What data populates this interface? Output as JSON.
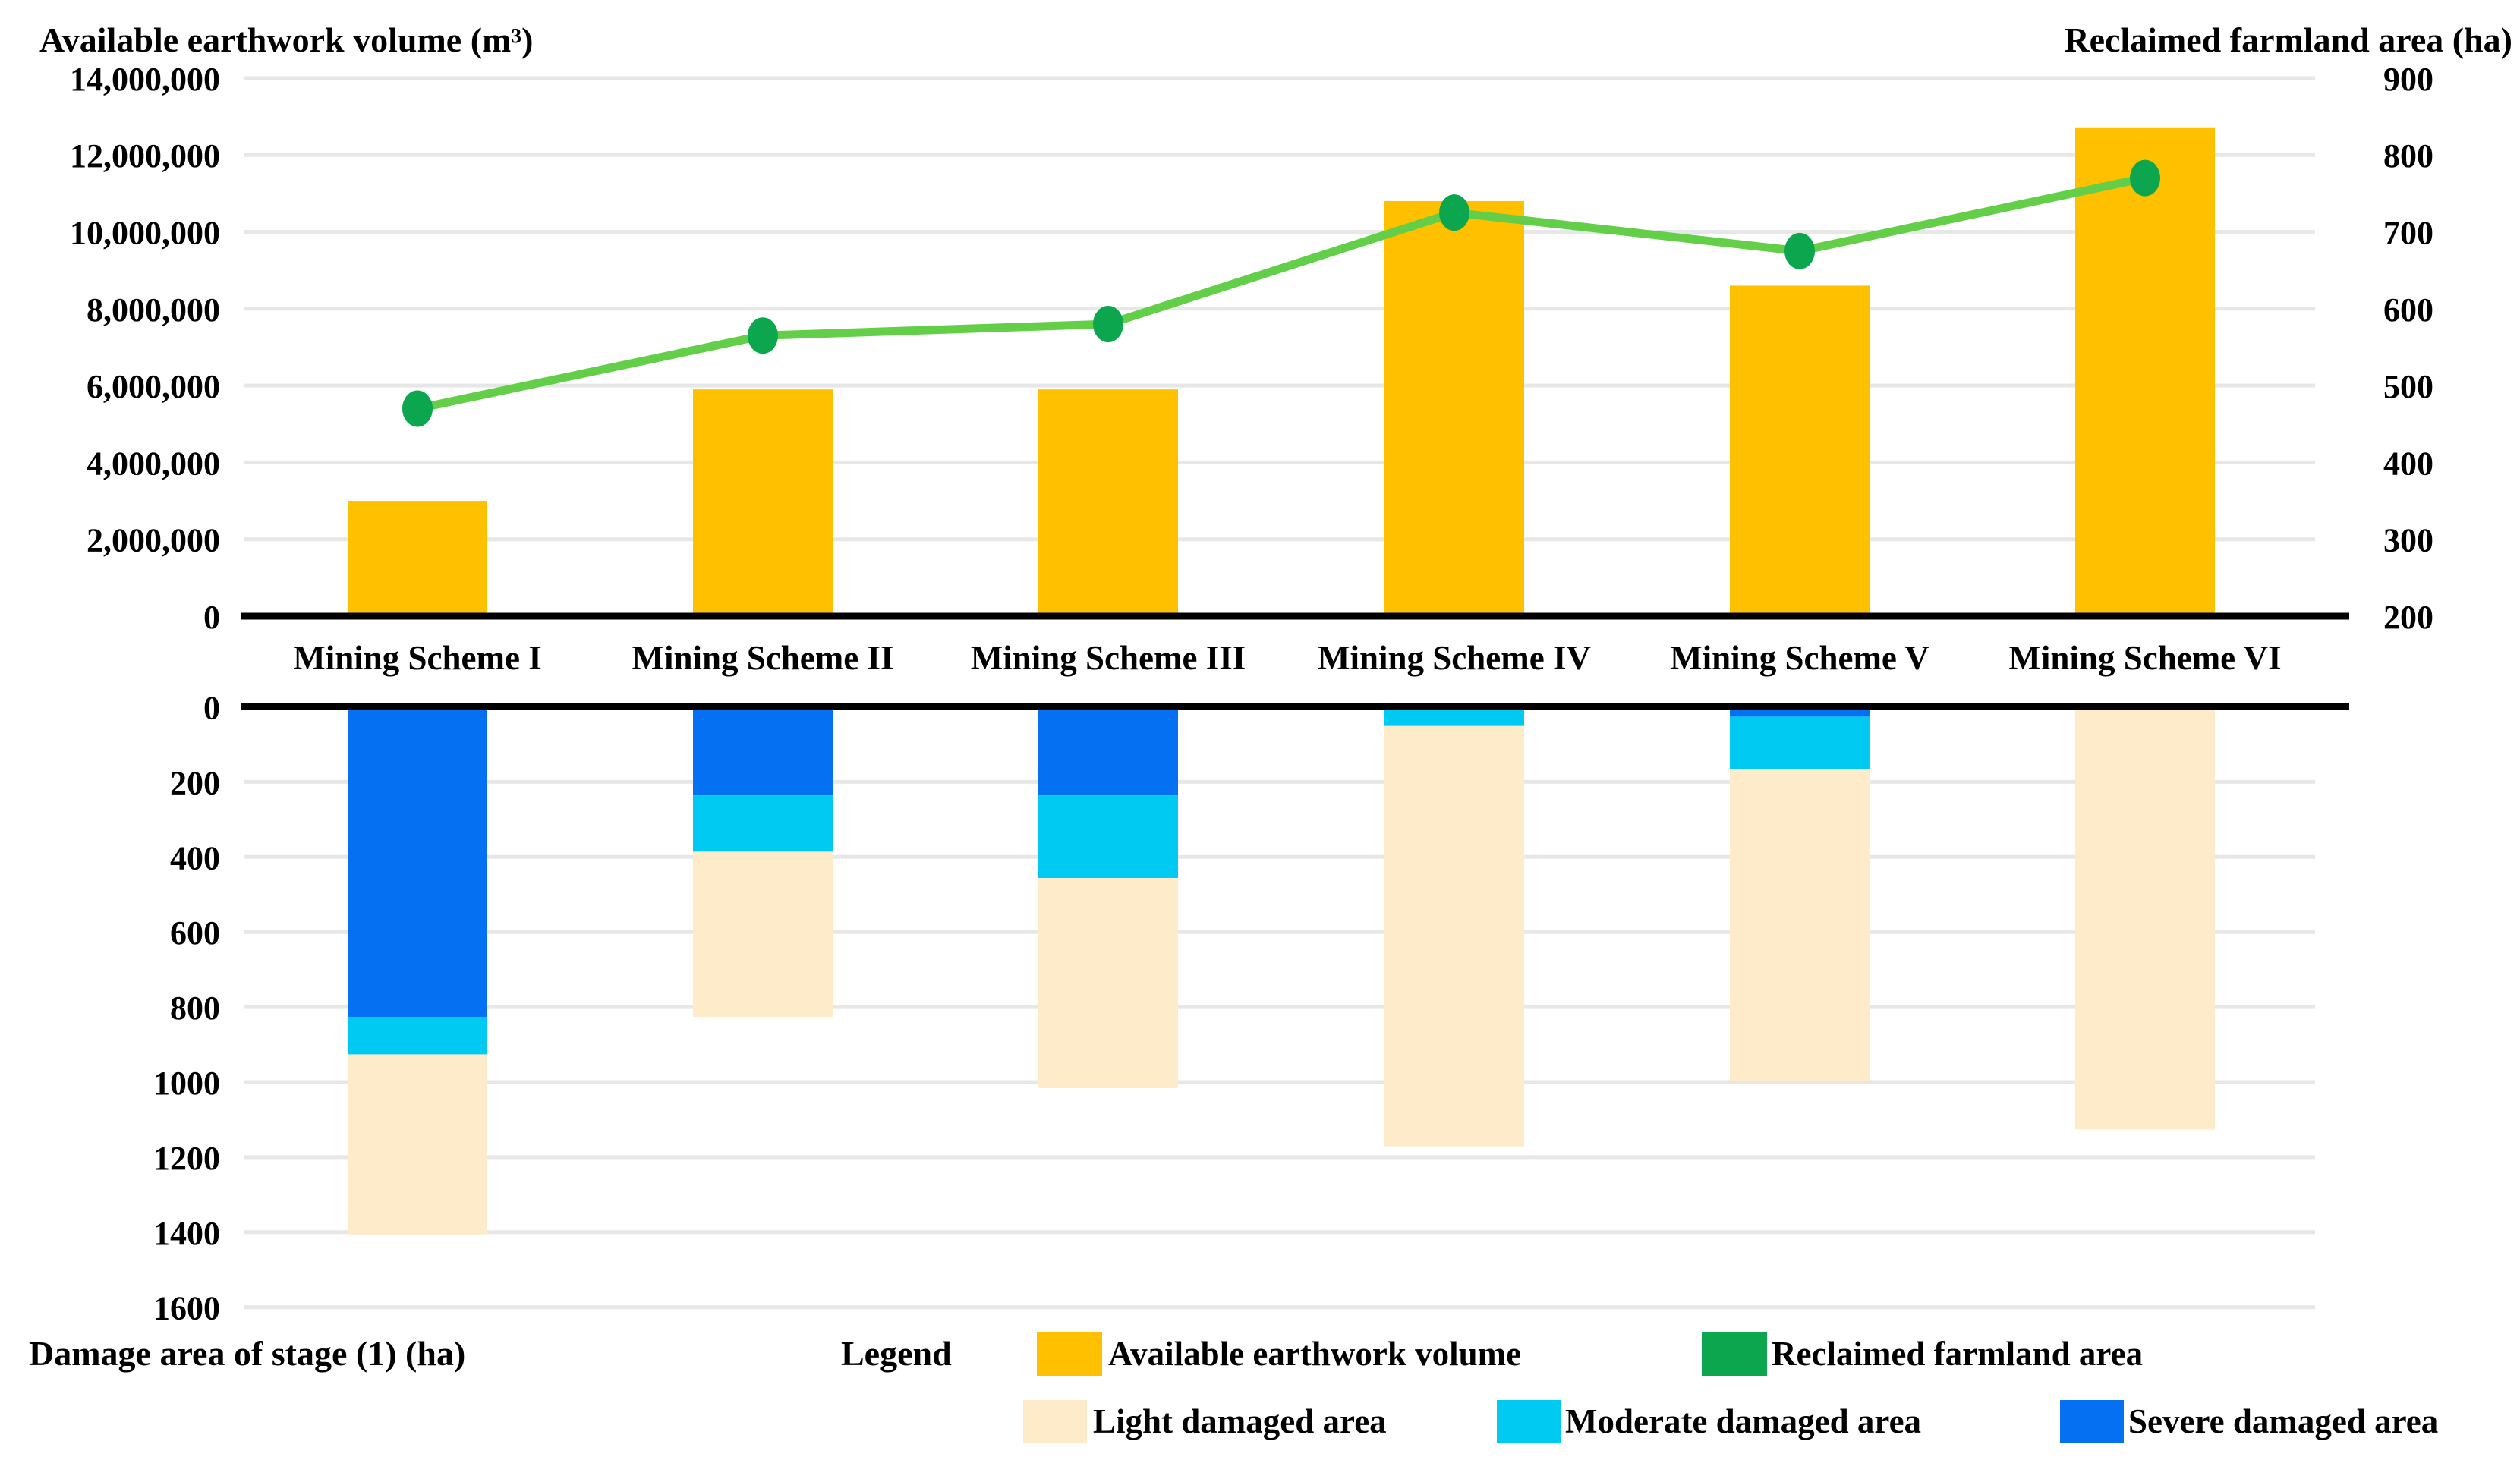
{
  "page": {
    "background": "#FFFFFF"
  },
  "colors": {
    "bar_gold": "#FFC000",
    "line_green": "#63CE47",
    "marker_green": "#0BA64D",
    "severe_blue": "#0670F2",
    "moderate_cyan": "#00C9F2",
    "light_beige": "#FDEBC9",
    "gridline": "#E7E7E7",
    "axis_line": "#000000",
    "text": "#000000"
  },
  "chart_data": {
    "type": "combo",
    "categories": [
      "Mining Scheme I",
      "Mining Scheme II",
      "Mining Scheme III",
      "Mining Scheme IV",
      "Mining Scheme V",
      "Mining Scheme VI"
    ],
    "top": {
      "type": "bar+line",
      "bar_series": {
        "name": "Available earthwork volume",
        "color": "#FFC000",
        "values": [
          3000000,
          5900000,
          5900000,
          10800000,
          8600000,
          12700000
        ]
      },
      "line_series": {
        "name": "Reclaimed farmland area",
        "line_color": "#63CE47",
        "marker_color": "#0BA64D",
        "values": [
          470,
          565,
          580,
          725,
          675,
          770
        ]
      },
      "left_axis": {
        "title": "Available earthwork volume (m³)",
        "min": 0,
        "max": 14000000,
        "step": 2000000,
        "tick_labels": [
          "0",
          "2,000,000",
          "4,000,000",
          "6,000,000",
          "8,000,000",
          "10,000,000",
          "12,000,000",
          "14,000,000"
        ]
      },
      "right_axis": {
        "title": "Reclaimed farmland area (ha)",
        "min": 200,
        "max": 900,
        "step": 100,
        "tick_labels": [
          "200",
          "300",
          "400",
          "500",
          "600",
          "700",
          "800",
          "900"
        ]
      },
      "grid": true
    },
    "bottom": {
      "type": "stacked-bar-inverted",
      "axis": {
        "title": "Damage area of stage (1) (ha)",
        "min": 0,
        "max": 1600,
        "step": 200,
        "direction": "down",
        "tick_labels": [
          "0",
          "200",
          "400",
          "600",
          "800",
          "1000",
          "1200",
          "1400",
          "1600"
        ]
      },
      "stack_order_top_to_bottom": [
        "Severe damaged area",
        "Moderate damaged area",
        "Light damaged area"
      ],
      "series": [
        {
          "name": "Severe damaged area",
          "color": "#0670F2",
          "values": [
            820,
            230,
            230,
            0,
            20,
            0
          ]
        },
        {
          "name": "Moderate damaged area",
          "color": "#00C9F2",
          "values": [
            100,
            150,
            220,
            45,
            140,
            0
          ]
        },
        {
          "name": "Light damaged area",
          "color": "#FDEBC9",
          "values": [
            480,
            440,
            560,
            1120,
            830,
            1120
          ]
        }
      ],
      "grid": true
    },
    "legend": {
      "title": "Legend"
    }
  }
}
